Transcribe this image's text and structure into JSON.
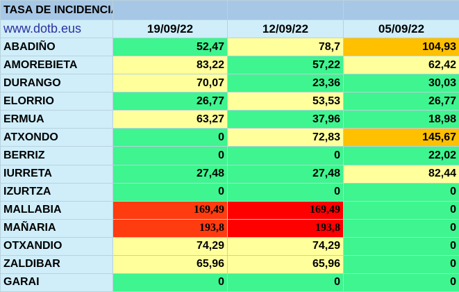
{
  "header": {
    "title": "TASA DE INCIDENCIA",
    "site": "www.dotb.eus",
    "dates": [
      "19/09/22",
      "12/09/22",
      "05/09/22"
    ]
  },
  "colors": {
    "green": "#3ef58f",
    "yellow": "#ffff9c",
    "orange": "#ffc000",
    "red": "#ff0000",
    "red_orange": "#ff3b10",
    "header_blue": "#a7c7e6",
    "label_cyan": "#cfeef9"
  },
  "rows": [
    {
      "name": "ABADIÑO",
      "values": [
        "52,47",
        "78,7",
        "104,93"
      ],
      "levels": [
        "green",
        "yellow",
        "orange"
      ]
    },
    {
      "name": "AMOREBIETA",
      "values": [
        "83,22",
        "57,22",
        "62,42"
      ],
      "levels": [
        "yellow",
        "green",
        "yellow"
      ]
    },
    {
      "name": "DURANGO",
      "values": [
        "70,07",
        "23,36",
        "30,03"
      ],
      "levels": [
        "yellow",
        "green",
        "green"
      ]
    },
    {
      "name": "ELORRIO",
      "values": [
        "26,77",
        "53,53",
        "26,77"
      ],
      "levels": [
        "green",
        "yellow",
        "green"
      ]
    },
    {
      "name": "ERMUA",
      "values": [
        "63,27",
        "37,96",
        "18,98"
      ],
      "levels": [
        "yellow",
        "green",
        "green"
      ]
    },
    {
      "name": "ATXONDO",
      "values": [
        "0",
        "72,83",
        "145,67"
      ],
      "levels": [
        "green",
        "yellow",
        "orange"
      ]
    },
    {
      "name": "BERRIZ",
      "values": [
        "0",
        "0",
        "22,02"
      ],
      "levels": [
        "green",
        "green",
        "green"
      ]
    },
    {
      "name": "IURRETA",
      "values": [
        "27,48",
        "27,48",
        "82,44"
      ],
      "levels": [
        "green",
        "green",
        "yellow"
      ]
    },
    {
      "name": "IZURTZA",
      "values": [
        "0",
        "0",
        "0"
      ],
      "levels": [
        "green",
        "green",
        "green"
      ]
    },
    {
      "name": "MALLABIA",
      "values": [
        "169,49",
        "169,49",
        "0"
      ],
      "levels": [
        "red_orange",
        "red",
        "green"
      ]
    },
    {
      "name": "MAÑARIA",
      "values": [
        "193,8",
        "193,8",
        "0"
      ],
      "levels": [
        "red_orange",
        "red",
        "green"
      ]
    },
    {
      "name": "OTXANDIO",
      "values": [
        "74,29",
        "74,29",
        "0"
      ],
      "levels": [
        "yellow",
        "yellow",
        "green"
      ]
    },
    {
      "name": "ZALDIBAR",
      "values": [
        "65,96",
        "65,96",
        "0"
      ],
      "levels": [
        "yellow",
        "yellow",
        "green"
      ]
    },
    {
      "name": "GARAI",
      "values": [
        "0",
        "0",
        "0"
      ],
      "levels": [
        "green",
        "green",
        "green"
      ]
    }
  ]
}
